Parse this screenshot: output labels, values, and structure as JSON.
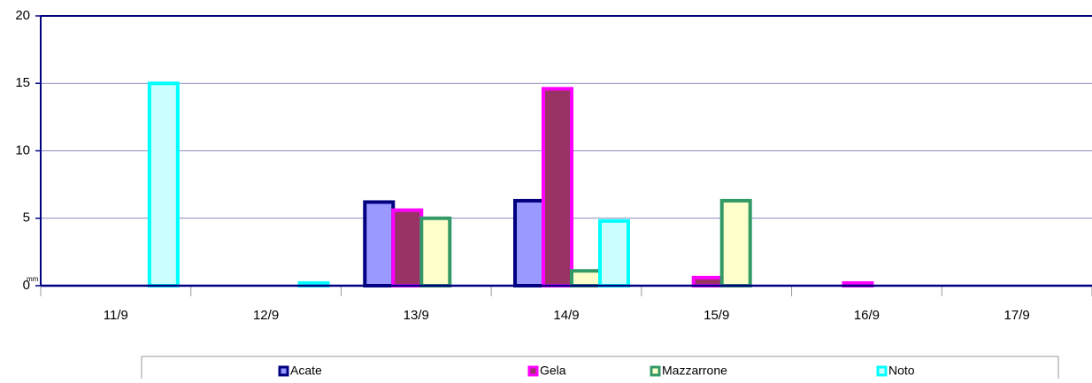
{
  "chart_data": {
    "type": "bar",
    "y_label": "mm",
    "categories": [
      "11/9",
      "12/9",
      "13/9",
      "14/9",
      "15/9",
      "16/9",
      "17/9"
    ],
    "series": [
      {
        "name": "Acate",
        "color": "#9999ff",
        "stroke": "#000080",
        "values": [
          0,
          0,
          6.2,
          6.3,
          0,
          0,
          0
        ]
      },
      {
        "name": "Gela",
        "color": "#993366",
        "stroke": "#ff00ff",
        "values": [
          0,
          0,
          5.6,
          14.6,
          0.6,
          0.2,
          0
        ]
      },
      {
        "name": "Mazzarrone",
        "color": "#ffffcc",
        "stroke": "#339966",
        "values": [
          0,
          0,
          5.0,
          1.1,
          6.3,
          0,
          0
        ]
      },
      {
        "name": "Noto",
        "color": "#ccffff",
        "stroke": "#00ffff",
        "values": [
          15,
          0.2,
          0,
          4.8,
          0,
          0,
          0
        ]
      }
    ],
    "ylim": [
      0,
      20
    ],
    "yticks": [
      0,
      5,
      10,
      15,
      20
    ],
    "grid": true,
    "legend": "bottom"
  }
}
